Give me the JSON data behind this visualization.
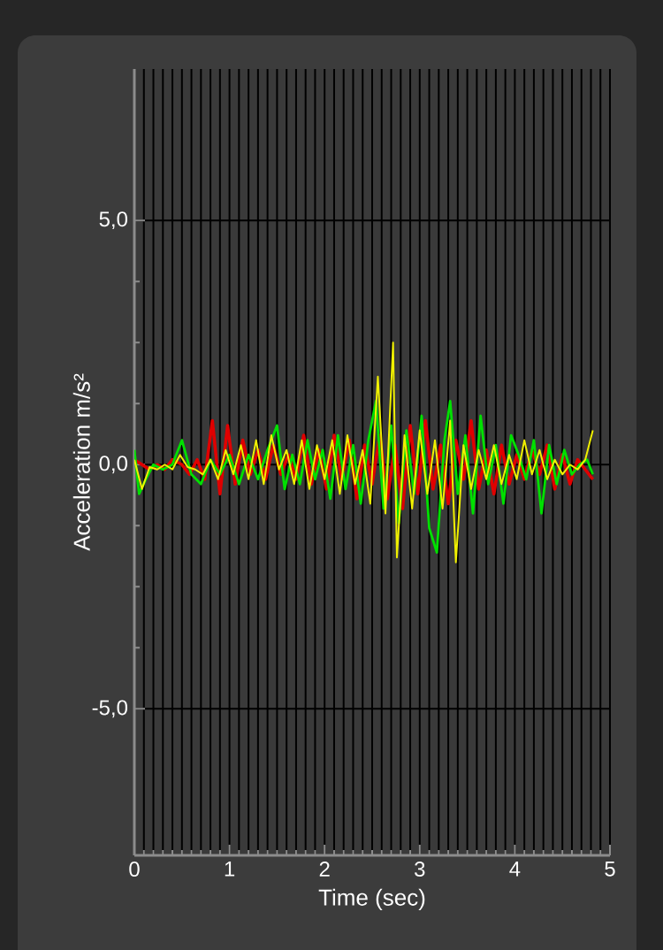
{
  "chart_data": {
    "type": "line",
    "xlabel": "Time (sec)",
    "ylabel": "Acceleration m/s²",
    "xlim": [
      0,
      5
    ],
    "ylim": [
      -8,
      8.1
    ],
    "xticks": [
      0,
      1,
      2,
      3,
      4,
      5
    ],
    "yticks": [
      {
        "value": -5,
        "label": "-5,0"
      },
      {
        "value": 0,
        "label": "0,0"
      },
      {
        "value": 5,
        "label": "5,0"
      }
    ],
    "grid": true,
    "line_style": "solid",
    "series": [
      {
        "color": "#e00000",
        "x": [
          0,
          0.08,
          0.16,
          0.24,
          0.32,
          0.4,
          0.5,
          0.58,
          0.66,
          0.74,
          0.82,
          0.9,
          0.98,
          1.06,
          1.14,
          1.22,
          1.3,
          1.38,
          1.46,
          1.54,
          1.62,
          1.7,
          1.78,
          1.86,
          1.94,
          2.02,
          2.1,
          2.18,
          2.26,
          2.34,
          2.42,
          2.5,
          2.58,
          2.66,
          2.74,
          2.82,
          2.9,
          2.98,
          3.06,
          3.14,
          3.22,
          3.3,
          3.38,
          3.46,
          3.54,
          3.62,
          3.7,
          3.78,
          3.86,
          3.94,
          4.02,
          4.1,
          4.18,
          4.26,
          4.34,
          4.42,
          4.5,
          4.58,
          4.66,
          4.74,
          4.82
        ],
        "values": [
          0.1,
          0.0,
          -0.1,
          0.0,
          -0.1,
          0.1,
          0.0,
          -0.2,
          0.1,
          -0.3,
          0.9,
          -0.6,
          0.8,
          -0.4,
          0.5,
          -0.2,
          0.3,
          -0.3,
          0.4,
          -0.2,
          0.2,
          -0.3,
          0.6,
          -0.4,
          0.3,
          -0.5,
          0.6,
          -0.3,
          0.5,
          -0.7,
          0.4,
          -0.4,
          0.6,
          -0.7,
          0.4,
          -0.9,
          0.8,
          -0.6,
          0.9,
          -0.5,
          0.4,
          -0.8,
          0.5,
          -0.3,
          0.9,
          -0.5,
          0.3,
          -0.6,
          0.4,
          -0.4,
          0.2,
          -0.3,
          0.3,
          -0.2,
          0.4,
          -0.5,
          0.2,
          -0.4,
          0.1,
          -0.1,
          -0.3
        ]
      },
      {
        "color": "#00e000",
        "x": [
          0,
          0.05,
          0.12,
          0.2,
          0.3,
          0.4,
          0.5,
          0.6,
          0.7,
          0.8,
          0.9,
          1.0,
          1.1,
          1.2,
          1.3,
          1.4,
          1.5,
          1.58,
          1.66,
          1.74,
          1.82,
          1.9,
          1.98,
          2.06,
          2.14,
          2.22,
          2.3,
          2.38,
          2.46,
          2.54,
          2.62,
          2.7,
          2.78,
          2.86,
          2.94,
          3.02,
          3.1,
          3.18,
          3.26,
          3.32,
          3.4,
          3.48,
          3.56,
          3.64,
          3.72,
          3.8,
          3.88,
          3.96,
          4.04,
          4.12,
          4.2,
          4.28,
          4.36,
          4.44,
          4.52,
          4.6,
          4.68,
          4.76,
          4.82
        ],
        "values": [
          0.3,
          -0.6,
          -0.3,
          0.0,
          -0.1,
          0.0,
          0.5,
          -0.2,
          -0.4,
          0.1,
          -0.2,
          0.2,
          -0.4,
          0.2,
          -0.3,
          0.3,
          0.8,
          -0.5,
          0.2,
          -0.4,
          0.5,
          -0.3,
          0.3,
          -0.7,
          0.6,
          -0.5,
          0.4,
          -0.8,
          0.5,
          1.3,
          -0.9,
          0.8,
          -1.2,
          0.7,
          -0.6,
          1.0,
          -1.3,
          -1.8,
          0.5,
          1.3,
          -0.6,
          0.6,
          -1.0,
          1.0,
          -0.4,
          0.4,
          -0.8,
          0.6,
          0.2,
          -0.3,
          0.5,
          -1.0,
          0.4,
          -0.4,
          0.3,
          -0.2,
          0.0,
          0.1,
          -0.2
        ]
      },
      {
        "color": "#f0f000",
        "x": [
          0,
          0.08,
          0.16,
          0.24,
          0.32,
          0.4,
          0.48,
          0.56,
          0.64,
          0.72,
          0.8,
          0.88,
          0.96,
          1.04,
          1.12,
          1.2,
          1.28,
          1.36,
          1.44,
          1.52,
          1.6,
          1.68,
          1.76,
          1.84,
          1.92,
          2.0,
          2.08,
          2.16,
          2.24,
          2.32,
          2.4,
          2.48,
          2.56,
          2.64,
          2.72,
          2.76,
          2.84,
          2.92,
          3.0,
          3.08,
          3.16,
          3.24,
          3.32,
          3.38,
          3.46,
          3.54,
          3.62,
          3.7,
          3.78,
          3.86,
          3.94,
          4.02,
          4.1,
          4.18,
          4.26,
          4.34,
          4.42,
          4.5,
          4.58,
          4.66,
          4.74,
          4.82
        ],
        "values": [
          0.1,
          -0.5,
          -0.05,
          -0.1,
          0.0,
          -0.1,
          0.2,
          -0.05,
          -0.1,
          -0.2,
          0.1,
          -0.3,
          0.3,
          -0.2,
          0.4,
          -0.3,
          0.5,
          -0.4,
          0.6,
          -0.1,
          0.3,
          -0.4,
          0.5,
          -0.5,
          0.4,
          -0.3,
          0.5,
          -0.6,
          0.6,
          -0.4,
          0.3,
          -0.8,
          1.8,
          -1.0,
          2.5,
          -1.9,
          0.6,
          -0.9,
          0.7,
          -0.6,
          0.5,
          -0.9,
          0.9,
          -2.0,
          0.4,
          -0.5,
          0.3,
          -0.3,
          0.4,
          -0.4,
          0.2,
          -0.3,
          0.5,
          -0.2,
          0.3,
          -0.3,
          0.1,
          -0.2,
          0.0,
          -0.1,
          0.1,
          0.7
        ]
      }
    ]
  }
}
